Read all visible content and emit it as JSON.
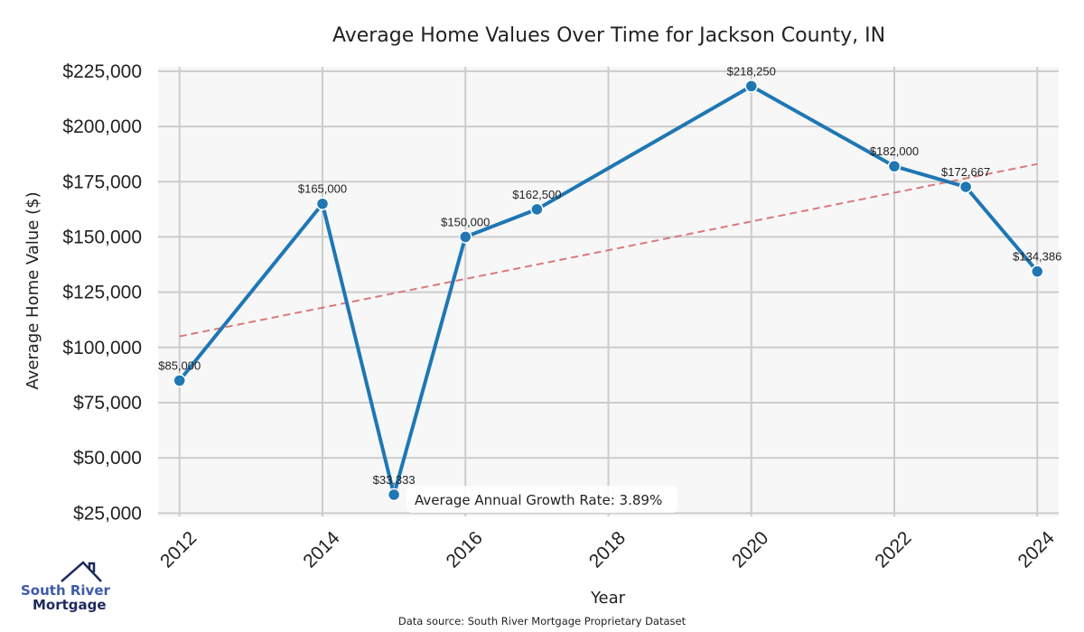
{
  "chart_data": {
    "type": "line",
    "title": "Average Home Values Over Time for Jackson County, IN",
    "xlabel": "Year",
    "ylabel": "Average Home Value ($)",
    "x": [
      2012,
      2014,
      2015,
      2016,
      2017,
      2020,
      2022,
      2023,
      2024
    ],
    "series": [
      {
        "name": "Average Home Value",
        "color": "#1f77b4",
        "values": [
          85000,
          165000,
          33333,
          150000,
          162500,
          218250,
          182000,
          172667,
          134386
        ],
        "labels": [
          "$85,000",
          "$165,000",
          "$33,333",
          "$150,000",
          "$162,500",
          "$218,250",
          "$182,000",
          "$172,667",
          "$134,386"
        ]
      }
    ],
    "trend": {
      "name": "Trend",
      "color": "#d9797a",
      "style": "dashed",
      "x": [
        2012,
        2024
      ],
      "values": [
        105000,
        183000
      ]
    },
    "xticks": [
      2012,
      2014,
      2016,
      2018,
      2020,
      2022,
      2024
    ],
    "xtick_labels": [
      "2012",
      "2014",
      "2016",
      "2018",
      "2020",
      "2022",
      "2024"
    ],
    "yticks": [
      25000,
      50000,
      75000,
      100000,
      125000,
      150000,
      175000,
      200000,
      225000
    ],
    "ytick_labels": [
      "$25,000",
      "$50,000",
      "$75,000",
      "$100,000",
      "$125,000",
      "$150,000",
      "$175,000",
      "$200,000",
      "$225,000"
    ],
    "xlim": [
      2011.7,
      2024.3
    ],
    "ylim": [
      23500,
      227000
    ],
    "grid": true,
    "annotation": "Average Annual Growth Rate: 3.89%"
  },
  "footer": {
    "source": "Data source: South River Mortgage Proprietary Dataset"
  },
  "logo": {
    "line1": "South River",
    "line2": "Mortgage",
    "color_primary": "#3f5aa8",
    "color_dark": "#1f2a5c"
  }
}
